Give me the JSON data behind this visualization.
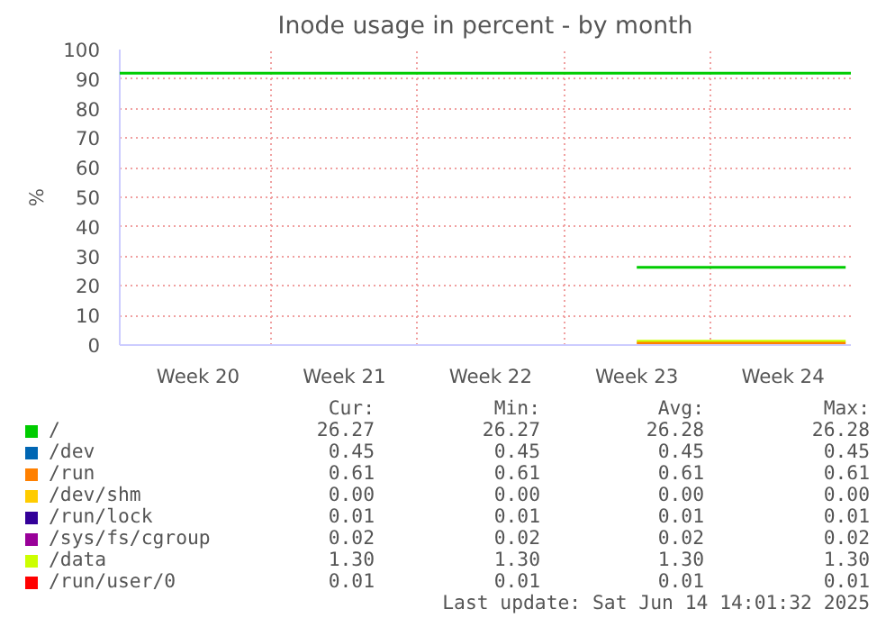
{
  "chart_data": {
    "type": "line",
    "title": "Inode usage in percent - by month",
    "ylabel": "%",
    "categories": [
      null,
      null,
      null,
      null,
      null,
      null,
      null,
      "Week 20",
      null,
      null,
      null,
      null,
      null,
      null,
      null,
      null,
      null,
      null,
      null,
      null,
      null,
      "Week 21",
      null,
      null,
      null,
      null,
      null,
      null,
      null,
      null,
      null,
      null,
      null,
      null,
      null,
      "Week 22",
      null,
      null,
      null,
      null,
      null,
      null,
      null,
      null,
      null,
      null,
      null,
      null,
      null,
      "Week 23",
      null,
      null,
      null,
      null,
      null,
      null,
      null,
      null,
      null,
      null,
      null,
      null,
      null,
      "Week 24",
      null,
      null,
      null,
      null,
      null,
      null
    ],
    "ylim": [
      0,
      100
    ],
    "yticks": [
      0,
      10,
      20,
      30,
      40,
      50,
      60,
      70,
      80,
      90,
      100
    ],
    "grid": true,
    "legend": "bottom",
    "marker": "none",
    "line_style": "solid",
    "series": [
      {
        "name": "/",
        "color": "#00cc00",
        "values": [
          null,
          null,
          null,
          null,
          null,
          null,
          null,
          null,
          null,
          null,
          null,
          null,
          null,
          null,
          null,
          null,
          null,
          null,
          null,
          null,
          null,
          null,
          null,
          null,
          null,
          null,
          null,
          null,
          null,
          null,
          null,
          null,
          null,
          null,
          null,
          null,
          null,
          null,
          null,
          null,
          null,
          null,
          null,
          null,
          null,
          null,
          null,
          null,
          null,
          26.27,
          26.27,
          26.27,
          26.27,
          26.27,
          26.27,
          26.27,
          26.27,
          26.27,
          26.27,
          26.27,
          26.27,
          26.27,
          26.27,
          26.27,
          26.27,
          26.27,
          26.27,
          26.27,
          26.27,
          26.28
        ]
      },
      {
        "name": "/dev",
        "color": "#0066b3",
        "values": [
          null,
          null,
          null,
          null,
          null,
          null,
          null,
          null,
          null,
          null,
          null,
          null,
          null,
          null,
          null,
          null,
          null,
          null,
          null,
          null,
          null,
          null,
          null,
          null,
          null,
          null,
          null,
          null,
          null,
          null,
          null,
          null,
          null,
          null,
          null,
          null,
          null,
          null,
          null,
          null,
          null,
          null,
          null,
          null,
          null,
          null,
          null,
          null,
          null,
          null,
          null,
          null,
          null,
          null,
          null,
          null,
          null,
          null,
          null,
          null,
          null,
          null,
          null,
          null,
          null,
          null,
          null,
          null,
          null,
          null
        ]
      },
      {
        "name": "/run",
        "color": "#ff8000",
        "values": [
          null,
          null,
          null,
          null,
          null,
          null,
          null,
          null,
          null,
          null,
          null,
          null,
          null,
          null,
          null,
          null,
          null,
          null,
          null,
          null,
          null,
          null,
          null,
          null,
          null,
          null,
          null,
          null,
          null,
          null,
          null,
          null,
          null,
          null,
          null,
          null,
          null,
          null,
          null,
          null,
          null,
          null,
          null,
          null,
          null,
          null,
          null,
          null,
          null,
          0.61,
          0.61,
          0.61,
          0.61,
          0.61,
          0.61,
          0.61,
          0.61,
          0.61,
          0.61,
          0.61,
          0.61,
          0.61,
          0.61,
          0.61,
          0.61,
          0.61,
          0.61,
          0.61,
          0.61,
          0.61
        ]
      },
      {
        "name": "/dev/shm",
        "color": "#ffcc00",
        "values": [
          null,
          null,
          null,
          null,
          null,
          null,
          null,
          null,
          null,
          null,
          null,
          null,
          null,
          null,
          null,
          null,
          null,
          null,
          null,
          null,
          null,
          null,
          null,
          null,
          null,
          null,
          null,
          null,
          null,
          null,
          null,
          null,
          null,
          null,
          null,
          null,
          null,
          null,
          null,
          null,
          null,
          null,
          null,
          null,
          null,
          null,
          null,
          null,
          null,
          null,
          null,
          null,
          null,
          null,
          null,
          null,
          null,
          null,
          null,
          null,
          null,
          null,
          null,
          null,
          null,
          null,
          null,
          null,
          null,
          null
        ]
      },
      {
        "name": "/run/lock",
        "color": "#330099",
        "values": [
          null,
          null,
          null,
          null,
          null,
          null,
          null,
          null,
          null,
          null,
          null,
          null,
          null,
          null,
          null,
          null,
          null,
          null,
          null,
          null,
          null,
          null,
          null,
          null,
          null,
          null,
          null,
          null,
          null,
          null,
          null,
          null,
          null,
          null,
          null,
          null,
          null,
          null,
          null,
          null,
          null,
          null,
          null,
          null,
          null,
          null,
          null,
          null,
          null,
          null,
          null,
          null,
          null,
          null,
          null,
          null,
          null,
          null,
          null,
          null,
          null,
          null,
          null,
          null,
          null,
          null,
          null,
          null,
          null,
          null
        ]
      },
      {
        "name": "/sys/fs/cgroup",
        "color": "#990099",
        "values": [
          null,
          null,
          null,
          null,
          null,
          null,
          null,
          null,
          null,
          null,
          null,
          null,
          null,
          null,
          null,
          null,
          null,
          null,
          null,
          null,
          null,
          null,
          null,
          null,
          null,
          null,
          null,
          null,
          null,
          null,
          null,
          null,
          null,
          null,
          null,
          null,
          null,
          null,
          null,
          null,
          null,
          null,
          null,
          null,
          null,
          null,
          null,
          null,
          null,
          null,
          null,
          null,
          null,
          null,
          null,
          null,
          null,
          null,
          null,
          null,
          null,
          null,
          null,
          null,
          null,
          null,
          null,
          null,
          null,
          null
        ]
      },
      {
        "name": "/data",
        "color": "#ccff00",
        "values": [
          null,
          null,
          null,
          null,
          null,
          null,
          null,
          null,
          null,
          null,
          null,
          null,
          null,
          null,
          null,
          null,
          null,
          null,
          null,
          null,
          null,
          null,
          null,
          null,
          null,
          null,
          null,
          null,
          null,
          null,
          null,
          null,
          null,
          null,
          null,
          null,
          null,
          null,
          null,
          null,
          null,
          null,
          null,
          null,
          null,
          null,
          null,
          null,
          null,
          1.3,
          1.3,
          1.3,
          1.3,
          1.3,
          1.3,
          1.3,
          1.3,
          1.3,
          1.3,
          1.3,
          1.3,
          1.3,
          1.3,
          1.3,
          1.3,
          1.3,
          1.3,
          1.3,
          1.3,
          1.3
        ]
      },
      {
        "name": "/run/user/0",
        "color": "#ff0000",
        "values": [
          null,
          null,
          null,
          null,
          null,
          null,
          null,
          null,
          null,
          null,
          null,
          null,
          null,
          null,
          null,
          null,
          null,
          null,
          null,
          null,
          null,
          null,
          null,
          null,
          null,
          null,
          null,
          null,
          null,
          null,
          null,
          null,
          null,
          null,
          null,
          null,
          null,
          null,
          null,
          null,
          null,
          null,
          null,
          null,
          null,
          null,
          null,
          null,
          null,
          null,
          null,
          null,
          null,
          null,
          null,
          null,
          null,
          null,
          null,
          null,
          null,
          null,
          null,
          null,
          null,
          null,
          null,
          null,
          null,
          null
        ]
      }
    ],
    "ref_lines": [
      {
        "axis": "y",
        "value": 92,
        "color": "#00cc00"
      }
    ],
    "annotations": [
      "Cur:",
      "Min:",
      "Avg:",
      "Max:",
      "26.27",
      "26.27",
      "26.28",
      "26.28",
      "0.45",
      "0.45",
      "0.45",
      "0.45",
      "0.61",
      "0.61",
      "0.61",
      "0.61",
      "0.00",
      "0.00",
      "0.00",
      "0.00",
      "0.01",
      "0.01",
      "0.01",
      "0.01",
      "0.02",
      "0.02",
      "0.02",
      "0.02",
      "1.30",
      "1.30",
      "1.30",
      "1.30",
      "0.01",
      "0.01",
      "0.01",
      "0.01",
      "Last update: Sat Jun 14 14:01:32 2025"
    ]
  }
}
